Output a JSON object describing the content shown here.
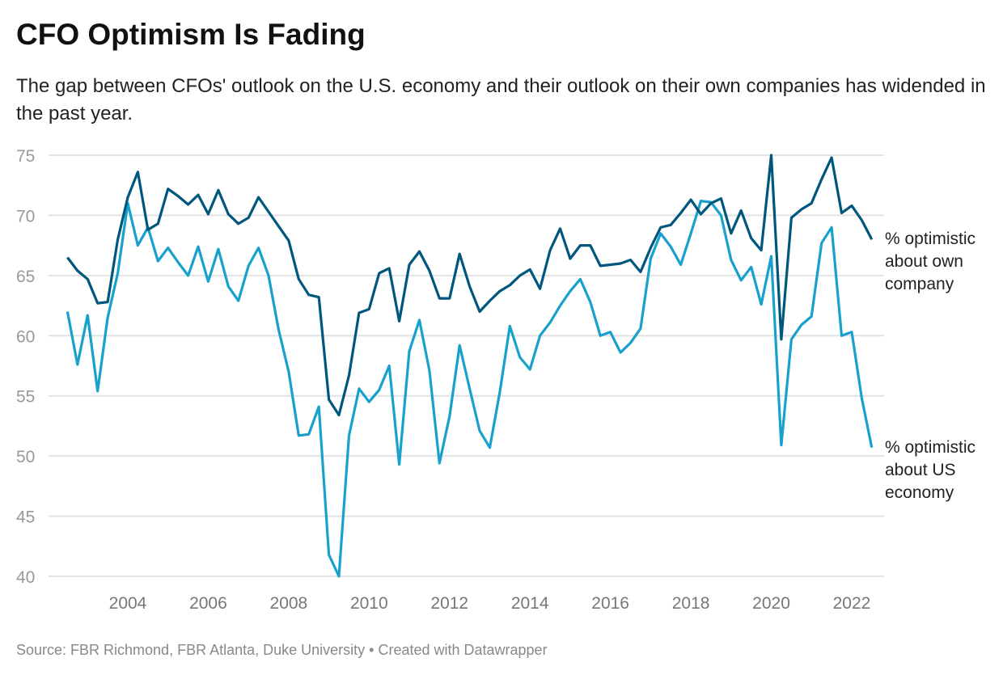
{
  "chart_data": {
    "type": "line",
    "title": "CFO Optimism Is Fading",
    "subtitle": "The gap between CFOs' outlook on the U.S. economy and their outlook on their own companies has widended in the past year.",
    "source": "Source: FBR Richmond, FBR Atlanta, Duke University • Created with Datawrapper",
    "ylim": [
      40,
      75
    ],
    "yticks": [
      "75",
      "70",
      "65",
      "60",
      "55",
      "50",
      "45",
      "40"
    ],
    "xticks": [
      "2004",
      "2006",
      "2008",
      "2010",
      "2012",
      "2014",
      "2016",
      "2018",
      "2020",
      "2022"
    ],
    "grid": true,
    "legend": "direct-labels-right",
    "x": [
      2002.5,
      2002.75,
      2003,
      2003.25,
      2003.5,
      2003.75,
      2004,
      2004.25,
      2004.5,
      2004.75,
      2005,
      2005.25,
      2005.5,
      2005.75,
      2006,
      2006.25,
      2006.5,
      2006.75,
      2007,
      2007.25,
      2007.5,
      2007.75,
      2008,
      2008.25,
      2008.5,
      2008.75,
      2009,
      2009.25,
      2009.5,
      2009.75,
      2010,
      2010.25,
      2010.5,
      2010.75,
      2011,
      2011.25,
      2011.5,
      2011.75,
      2012,
      2012.25,
      2012.5,
      2012.75,
      2013,
      2013.25,
      2013.5,
      2013.75,
      2014,
      2014.25,
      2014.5,
      2014.75,
      2015,
      2015.25,
      2015.5,
      2015.75,
      2016,
      2016.25,
      2016.5,
      2016.75,
      2017,
      2017.25,
      2017.5,
      2017.75,
      2018,
      2018.25,
      2018.5,
      2018.75,
      2019,
      2019.25,
      2019.5,
      2019.75,
      2020,
      2020.25,
      2020.5,
      2020.75,
      2021,
      2021.25,
      2021.5,
      2021.75,
      2022,
      2022.25,
      2022.5
    ],
    "series": [
      {
        "name": "% optimistic about own company",
        "color": "#00577d",
        "values": [
          66.5,
          65.4,
          64.7,
          62.7,
          62.8,
          68.0,
          71.5,
          73.6,
          68.8,
          69.3,
          72.2,
          71.6,
          70.9,
          71.7,
          70.1,
          72.1,
          70.1,
          69.3,
          69.8,
          71.5,
          70.3,
          69.1,
          67.9,
          64.7,
          63.4,
          63.2,
          54.7,
          53.4,
          56.7,
          61.9,
          62.2,
          65.2,
          65.6,
          61.2,
          65.9,
          67.0,
          65.4,
          63.1,
          63.1,
          66.8,
          64.1,
          62.0,
          62.9,
          63.7,
          64.2,
          65.0,
          65.5,
          63.9,
          67.1,
          68.9,
          66.4,
          67.5,
          67.5,
          65.8,
          65.9,
          66.0,
          66.3,
          65.3,
          67.3,
          69.0,
          69.2,
          70.2,
          71.3,
          70.1,
          71.0,
          71.4,
          68.5,
          70.4,
          68.1,
          67.1,
          75.0,
          59.7,
          69.8,
          70.5,
          71.0,
          73.0,
          74.8,
          70.2,
          70.8,
          69.6,
          68.0
        ]
      },
      {
        "name": "% optimistic about US economy",
        "color": "#18a1cd",
        "values": [
          62.0,
          57.6,
          61.7,
          55.4,
          61.5,
          65.2,
          71.0,
          67.5,
          69.0,
          66.2,
          67.3,
          66.1,
          65.0,
          67.4,
          64.5,
          67.2,
          64.1,
          62.9,
          65.8,
          67.3,
          65.0,
          60.5,
          57.0,
          51.7,
          51.8,
          54.1,
          41.8,
          40.0,
          51.7,
          55.6,
          54.5,
          55.5,
          57.5,
          49.3,
          58.7,
          61.3,
          57.1,
          49.4,
          53.3,
          59.2,
          55.6,
          52.1,
          50.7,
          55.3,
          60.8,
          58.2,
          57.2,
          60.0,
          61.1,
          62.5,
          63.7,
          64.7,
          62.8,
          60.0,
          60.3,
          58.6,
          59.4,
          60.6,
          66.4,
          68.5,
          67.4,
          65.9,
          68.5,
          71.2,
          71.1,
          70.0,
          66.3,
          64.6,
          65.7,
          62.6,
          66.6,
          50.9,
          59.7,
          60.9,
          61.6,
          67.7,
          69.0,
          60.0,
          60.3,
          54.8,
          50.7
        ]
      }
    ]
  }
}
